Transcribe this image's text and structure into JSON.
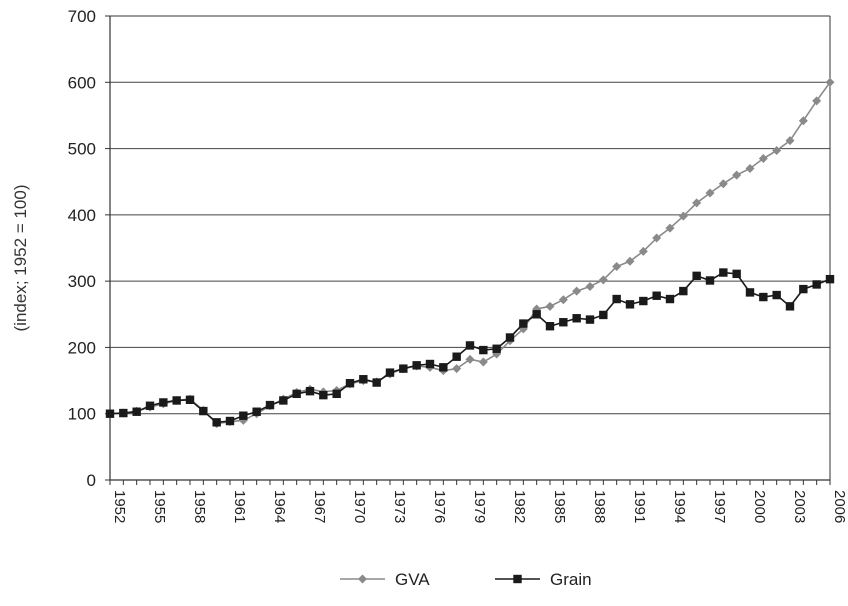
{
  "chart_data": {
    "type": "line",
    "title": "",
    "xlabel": "",
    "ylabel": "(index; 1952 = 100)",
    "ylim": [
      0,
      700
    ],
    "xlim": [
      1952,
      2006
    ],
    "grid": "horizontal",
    "legend_placement": "bottom-center",
    "y_ticks": [
      0,
      100,
      200,
      300,
      400,
      500,
      600,
      700
    ],
    "x_ticks": [
      1952,
      1955,
      1958,
      1961,
      1964,
      1967,
      1970,
      1973,
      1976,
      1979,
      1982,
      1985,
      1988,
      1991,
      1994,
      1997,
      2000,
      2003,
      2006
    ],
    "x": [
      1952,
      1953,
      1954,
      1955,
      1956,
      1957,
      1958,
      1959,
      1960,
      1961,
      1962,
      1963,
      1964,
      1965,
      1966,
      1967,
      1968,
      1969,
      1970,
      1971,
      1972,
      1973,
      1974,
      1975,
      1976,
      1977,
      1978,
      1979,
      1980,
      1981,
      1982,
      1983,
      1984,
      1985,
      1986,
      1987,
      1988,
      1989,
      1990,
      1991,
      1992,
      1993,
      1994,
      1995,
      1996,
      1997,
      1998,
      1999,
      2000,
      2001,
      2002,
      2003,
      2004,
      2005,
      2006
    ],
    "series": [
      {
        "name": "GVA",
        "color": "#8a8a8a",
        "marker": "diamond",
        "values": [
          100,
          101,
          104,
          110,
          115,
          120,
          122,
          105,
          85,
          88,
          90,
          100,
          112,
          122,
          132,
          137,
          133,
          135,
          145,
          150,
          148,
          160,
          168,
          172,
          170,
          165,
          168,
          182,
          178,
          190,
          210,
          228,
          258,
          262,
          272,
          285,
          292,
          302,
          322,
          330,
          345,
          365,
          380,
          398,
          418,
          433,
          447,
          460,
          470,
          485,
          497,
          512,
          542,
          572,
          600
        ]
      },
      {
        "name": "Grain",
        "color": "#1a1a1a",
        "marker": "square",
        "values": [
          100,
          101,
          103,
          112,
          117,
          120,
          121,
          104,
          87,
          89,
          97,
          103,
          113,
          120,
          130,
          134,
          128,
          130,
          146,
          152,
          147,
          162,
          168,
          173,
          175,
          170,
          186,
          203,
          196,
          198,
          215,
          236,
          250,
          232,
          238,
          244,
          242,
          249,
          273,
          265,
          270,
          278,
          273,
          285,
          308,
          301,
          313,
          311,
          283,
          276,
          279,
          262,
          288,
          295,
          303
        ]
      }
    ]
  }
}
